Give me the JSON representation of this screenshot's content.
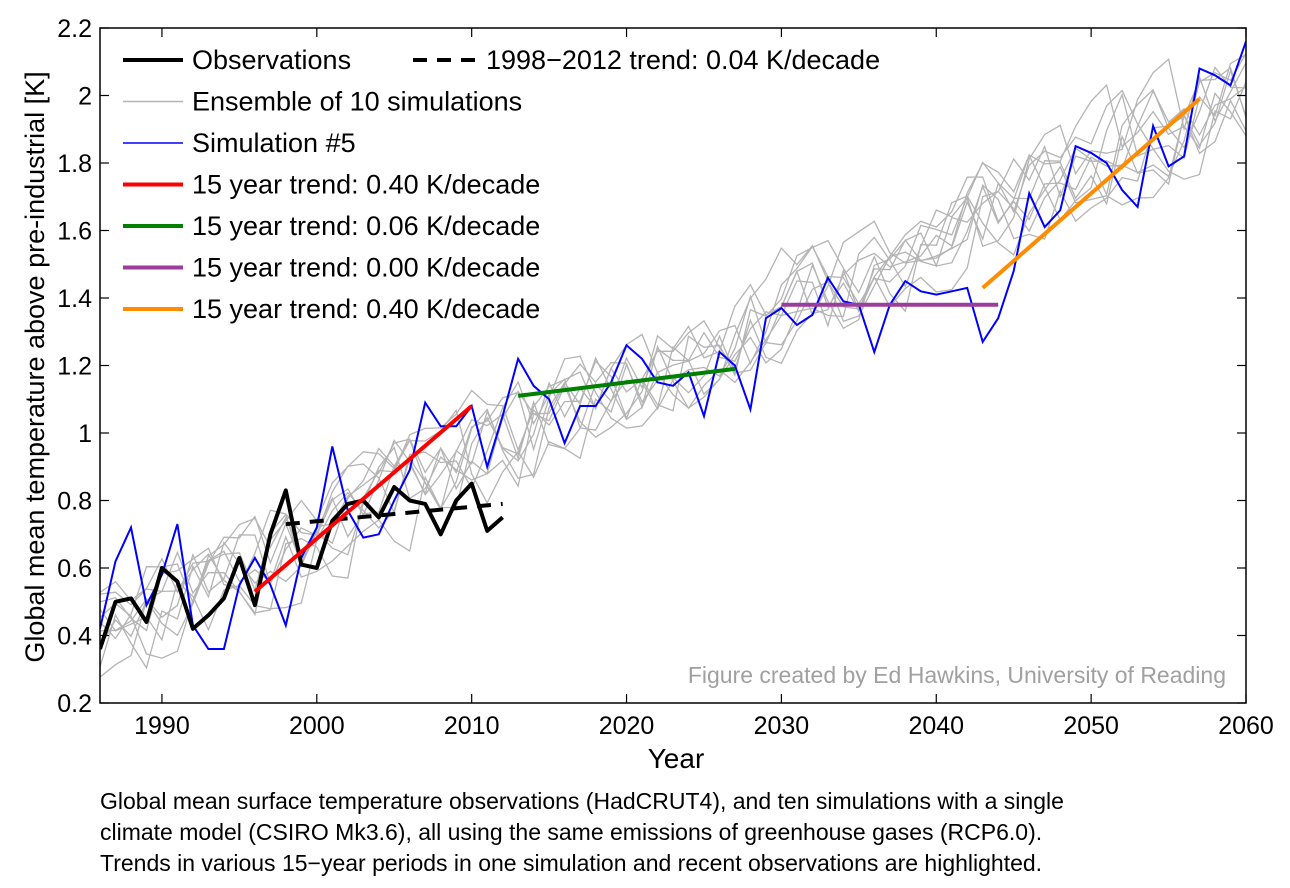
{
  "chart_data": {
    "type": "line",
    "title": "",
    "xlabel": "Year",
    "ylabel": "Global mean temperature above pre-industrial  [K]",
    "xlim": [
      1986,
      2060
    ],
    "ylim": [
      0.2,
      2.2
    ],
    "xticks": [
      1990,
      2000,
      2010,
      2020,
      2030,
      2040,
      2050,
      2060
    ],
    "xtick_labels": [
      "1990",
      "2000",
      "2010",
      "2020",
      "2030",
      "2040",
      "2050",
      "2060"
    ],
    "yticks": [
      0.2,
      0.4,
      0.6,
      0.8,
      1.0,
      1.2,
      1.4,
      1.6,
      1.8,
      2.0,
      2.2
    ],
    "ytick_labels": [
      "0.2",
      "0.4",
      "0.6",
      "0.8",
      "1",
      "1.2",
      "1.4",
      "1.6",
      "1.8",
      "2",
      "2.2"
    ],
    "grid": false,
    "legend_position": "top-left",
    "annotation": "Figure created by Ed Hawkins, University of Reading",
    "colors": {
      "observations": "#000000",
      "ensemble": "#b4b4b4",
      "simulation": "#0000ff",
      "trend_red": "#ff0000",
      "trend_green": "#008000",
      "trend_purple": "#9b3d9b",
      "trend_orange": "#ff8c00",
      "annotation": "#a0a0a0"
    },
    "legend": [
      {
        "label": "Observations",
        "color": "#000000",
        "style": "solid-thick"
      },
      {
        "label": "1998−2012 trend: 0.04 K/decade",
        "color": "#000000",
        "style": "dashed"
      },
      {
        "label": "Ensemble of 10 simulations",
        "color": "#b4b4b4",
        "style": "thin"
      },
      {
        "label": "Simulation #5",
        "color": "#0000ff",
        "style": "thin"
      },
      {
        "label": "15 year trend: 0.40 K/decade",
        "color": "#ff0000",
        "style": "thick"
      },
      {
        "label": "15 year trend: 0.06 K/decade",
        "color": "#008000",
        "style": "thick"
      },
      {
        "label": "15 year trend: 0.00 K/decade",
        "color": "#9b3d9b",
        "style": "thick"
      },
      {
        "label": "15 year trend: 0.40 K/decade",
        "color": "#ff8c00",
        "style": "thick"
      }
    ],
    "observations": {
      "name": "Observations",
      "x": [
        1986,
        1987,
        1988,
        1989,
        1990,
        1991,
        1992,
        1993,
        1994,
        1995,
        1996,
        1997,
        1998,
        1999,
        2000,
        2001,
        2002,
        2003,
        2004,
        2005,
        2006,
        2007,
        2008,
        2009,
        2010,
        2011,
        2012
      ],
      "values": [
        0.36,
        0.5,
        0.51,
        0.44,
        0.6,
        0.56,
        0.42,
        0.46,
        0.51,
        0.63,
        0.49,
        0.7,
        0.83,
        0.61,
        0.6,
        0.74,
        0.79,
        0.8,
        0.75,
        0.84,
        0.8,
        0.79,
        0.7,
        0.8,
        0.85,
        0.71,
        0.75
      ]
    },
    "simulation5": {
      "name": "Simulation #5",
      "x": [
        1986,
        1987,
        1988,
        1989,
        1990,
        1991,
        1992,
        1993,
        1994,
        1995,
        1996,
        1997,
        1998,
        1999,
        2000,
        2001,
        2002,
        2003,
        2004,
        2005,
        2006,
        2007,
        2008,
        2009,
        2010,
        2011,
        2012,
        2013,
        2014,
        2015,
        2016,
        2017,
        2018,
        2019,
        2020,
        2021,
        2022,
        2023,
        2024,
        2025,
        2026,
        2027,
        2028,
        2029,
        2030,
        2031,
        2032,
        2033,
        2034,
        2035,
        2036,
        2037,
        2038,
        2039,
        2040,
        2041,
        2042,
        2043,
        2044,
        2045,
        2046,
        2047,
        2048,
        2049,
        2050,
        2051,
        2052,
        2053,
        2054,
        2055,
        2056,
        2057,
        2058,
        2059,
        2060
      ],
      "values": [
        0.42,
        0.62,
        0.72,
        0.49,
        0.58,
        0.73,
        0.43,
        0.36,
        0.36,
        0.55,
        0.63,
        0.55,
        0.43,
        0.63,
        0.72,
        0.96,
        0.77,
        0.69,
        0.7,
        0.8,
        0.89,
        1.09,
        1.02,
        1.02,
        1.08,
        0.9,
        1.05,
        1.22,
        1.14,
        1.1,
        0.97,
        1.08,
        1.08,
        1.15,
        1.26,
        1.22,
        1.15,
        1.14,
        1.18,
        1.05,
        1.24,
        1.2,
        1.07,
        1.34,
        1.37,
        1.32,
        1.35,
        1.46,
        1.39,
        1.38,
        1.24,
        1.38,
        1.45,
        1.42,
        1.41,
        1.42,
        1.43,
        1.27,
        1.34,
        1.48,
        1.71,
        1.61,
        1.66,
        1.85,
        1.83,
        1.8,
        1.72,
        1.67,
        1.91,
        1.79,
        1.82,
        2.08,
        2.06,
        2.03,
        2.16
      ]
    },
    "ensemble": {
      "name": "Ensemble of 10 simulations",
      "count": 10,
      "x_start": 1986,
      "x_end": 2060
    },
    "trends": [
      {
        "label": "1998−2012 trend: 0.04 K/decade",
        "x": [
          1998,
          2012
        ],
        "values": [
          0.73,
          0.79
        ],
        "color": "#000000",
        "dashed": true
      },
      {
        "label": "15 year trend: 0.40 K/decade",
        "x": [
          1996,
          2010
        ],
        "values": [
          0.53,
          1.08
        ],
        "color": "#ff0000",
        "dashed": false
      },
      {
        "label": "15 year trend: 0.06 K/decade",
        "x": [
          2013,
          2027
        ],
        "values": [
          1.11,
          1.19
        ],
        "color": "#008000",
        "dashed": false
      },
      {
        "label": "15 year trend: 0.00 K/decade",
        "x": [
          2030,
          2044
        ],
        "values": [
          1.38,
          1.38
        ],
        "color": "#9b3d9b",
        "dashed": false
      },
      {
        "label": "15 year trend: 0.40 K/decade",
        "x": [
          2043,
          2057
        ],
        "values": [
          1.43,
          1.99
        ],
        "color": "#ff8c00",
        "dashed": false
      }
    ]
  },
  "caption": {
    "line1": "Global mean surface temperature observations (HadCRUT4), and ten simulations with a single",
    "line2": "climate model (CSIRO Mk3.6), all using the same emissions of greenhouse gases (RCP6.0).",
    "line3": "Trends in various 15−year periods in one simulation and recent observations are highlighted."
  }
}
